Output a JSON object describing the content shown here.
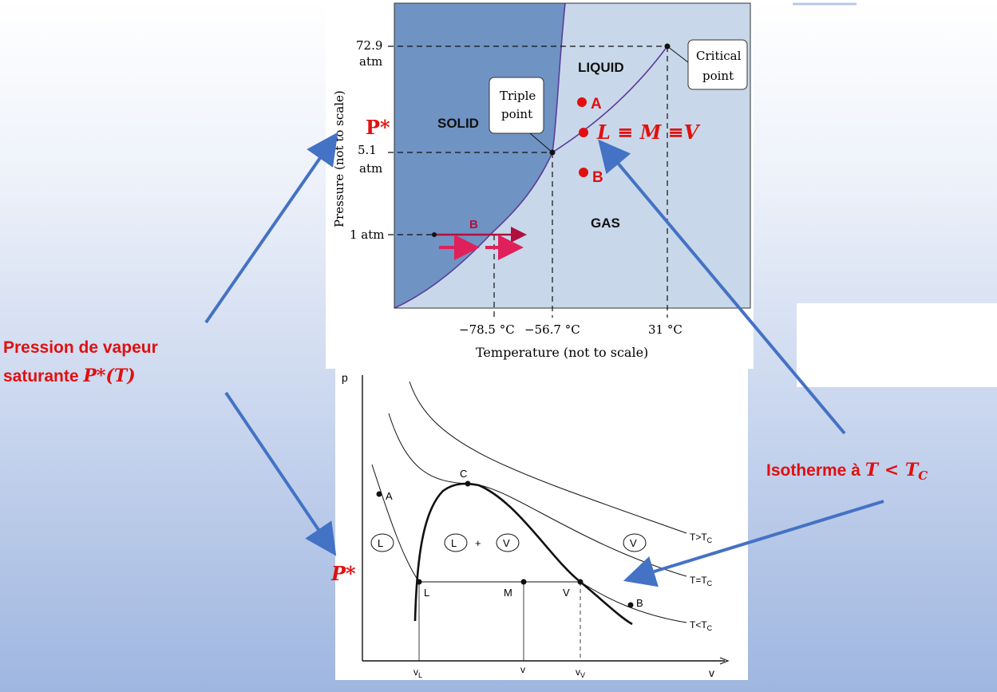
{
  "phase_diagram": {
    "ylabel": "Pressure (not to scale)",
    "xlabel": "Temperature (not to scale)",
    "p_ticks": [
      "72.9",
      "atm",
      "5.1",
      "atm",
      "1 atm"
    ],
    "t_ticks": [
      "−78.5 °C",
      "−56.7 °C",
      "31 °C"
    ],
    "regions": {
      "solid": "SOLID",
      "liquid": "LIQUID",
      "gas": "GAS"
    },
    "triple_callout": [
      "Triple",
      "point"
    ],
    "critical_callout": [
      "Critical",
      "point"
    ],
    "arrow_label": "B",
    "points": {
      "a": "A",
      "lmv": "L ≡ M ≡V",
      "b": "B"
    },
    "p_star": "P*"
  },
  "isotherm_diagram": {
    "ylabel": "p",
    "xlabel": "v",
    "x_ticks": [
      "v",
      "v",
      "v"
    ],
    "x_tick_subs": [
      "L",
      "",
      "V"
    ],
    "point_labels": {
      "a": "A",
      "c": "C",
      "l": "L",
      "m": "M",
      "v": "V",
      "b": "B"
    },
    "regions": {
      "l": "L",
      "lv_l": "L",
      "plus": "+",
      "lv_v": "V",
      "v": "V"
    },
    "curve_labels": [
      "T>T",
      "T=T",
      "T<T"
    ],
    "curve_subs": [
      "C",
      "C",
      "C"
    ],
    "p_star": "P*"
  },
  "annotations": {
    "left_line1": "Pression de vapeur",
    "left_line2": "saturante ",
    "left_math": "P*(T)",
    "right_text": "Isotherme à ",
    "right_math": "T < T",
    "right_sub": "C"
  },
  "colors": {
    "solid_fill": "#6f93c3",
    "other_fill": "#c8d8ea",
    "boundary": "#5a3c9a",
    "accent_red": "#e01010",
    "arrow_blue": "#4472c4",
    "arrow_crimson": "#b01040"
  }
}
